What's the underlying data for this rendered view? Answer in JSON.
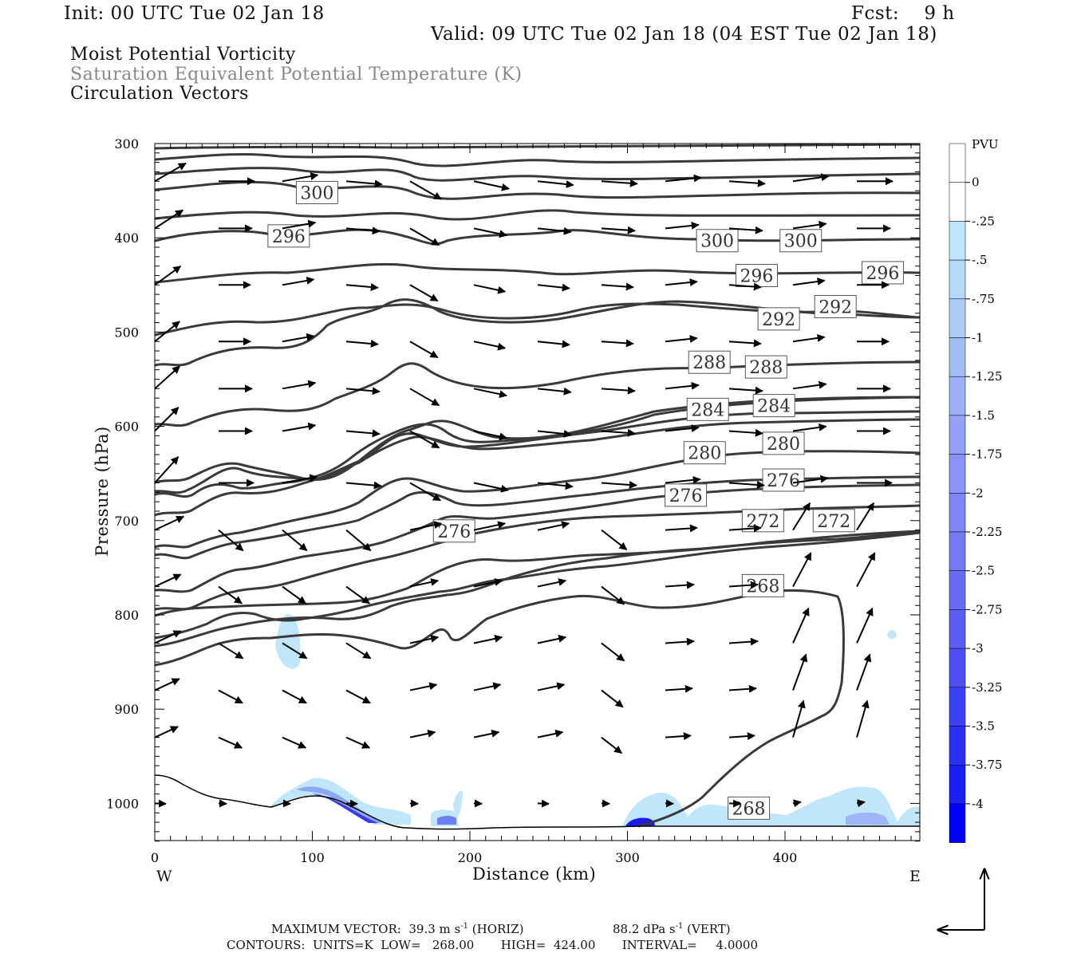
{
  "header": {
    "init": "Init: 00 UTC Tue 02 Jan 18",
    "fcst": "Fcst:    9 h",
    "valid": "Valid: 09 UTC Tue 02 Jan 18 (04 EST Tue 02 Jan 18)",
    "field1": "Moist Potential Vorticity",
    "field2": "Saturation Equivalent Potential Temperature (K)",
    "field3": "Circulation Vectors"
  },
  "footer": {
    "max_vector_label": "MAXIMUM VECTOR:",
    "max_horiz": "39.3 m s",
    "horiz_tag": "(HORIZ)",
    "max_vert": "88.2 dPa s",
    "vert_tag": "(VERT)",
    "exponent": "-1",
    "contours": "CONTOURS:  UNITS=K  LOW=   268.00       HIGH=  424.00       INTERVAL=     4.0000"
  },
  "colors": {
    "contour": "#3a3a3a",
    "pv_light": "#bfe6fa",
    "pv_dark": "#0000ff",
    "vector": "#000000"
  },
  "chart_data": {
    "type": "cross-section",
    "xlabel": "Distance (km)",
    "ylabel": "Pressure (hPa)",
    "x_ticks": [
      0,
      100,
      200,
      300,
      400
    ],
    "y_ticks": [
      300,
      400,
      500,
      600,
      700,
      800,
      900,
      1000
    ],
    "xlim": [
      0,
      485
    ],
    "ylim": [
      300,
      1040
    ],
    "y_inverted": true,
    "left_end": "W",
    "right_end": "E",
    "colorbar": {
      "title": "PVU",
      "levels": [
        "0",
        "-.25",
        "-.5",
        "-.75",
        "-1",
        "-1.25",
        "-1.5",
        "-1.75",
        "-2",
        "-2.25",
        "-2.5",
        "-2.75",
        "-3",
        "-3.25",
        "-3.5",
        "-3.75",
        "-4"
      ]
    },
    "contour_labels": [
      {
        "text": "300",
        "x": 103,
        "p": 352
      },
      {
        "text": "296",
        "x": 85,
        "p": 398
      },
      {
        "text": "300",
        "x": 357,
        "p": 403
      },
      {
        "text": "300",
        "x": 410,
        "p": 403
      },
      {
        "text": "296",
        "x": 382,
        "p": 440
      },
      {
        "text": "296",
        "x": 462,
        "p": 437
      },
      {
        "text": "292",
        "x": 396,
        "p": 486
      },
      {
        "text": "292",
        "x": 432,
        "p": 473
      },
      {
        "text": "288",
        "x": 352,
        "p": 532
      },
      {
        "text": "288",
        "x": 388,
        "p": 537
      },
      {
        "text": "284",
        "x": 351,
        "p": 582
      },
      {
        "text": "284",
        "x": 393,
        "p": 578
      },
      {
        "text": "280",
        "x": 349,
        "p": 628
      },
      {
        "text": "280",
        "x": 399,
        "p": 618
      },
      {
        "text": "276",
        "x": 337,
        "p": 673
      },
      {
        "text": "276",
        "x": 399,
        "p": 657
      },
      {
        "text": "276",
        "x": 190,
        "p": 711
      },
      {
        "text": "272",
        "x": 386,
        "p": 700
      },
      {
        "text": "272",
        "x": 431,
        "p": 700
      },
      {
        "text": "268",
        "x": 386,
        "p": 769
      },
      {
        "text": "268",
        "x": 377,
        "p": 1005
      }
    ]
  }
}
